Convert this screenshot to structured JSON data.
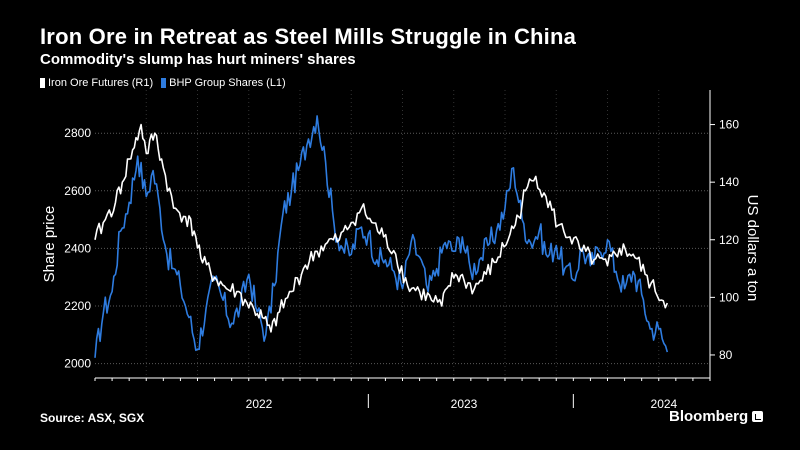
{
  "title": "Iron Ore in Retreat as Steel Mills Struggle in China",
  "subtitle": "Commodity's slump has hurt miners' shares",
  "source": "Source: ASX, SGX",
  "brand": "Bloomberg",
  "colors": {
    "iron": "#ffffff",
    "bhp": "#2e7ce0",
    "grid": "#5a5a5a"
  },
  "chart_data": {
    "type": "line",
    "xlabel": "",
    "x_range": [
      "2021-09",
      "2024-09"
    ],
    "x_categories": [
      "2022",
      "2023",
      "2024"
    ],
    "ylabel_left": "Share price",
    "ylabel_right": "US dollars a ton",
    "ylim_left": [
      1950,
      2950
    ],
    "ylim_right": [
      72,
      172
    ],
    "yticks_left": [
      2000,
      2200,
      2400,
      2600,
      2800
    ],
    "yticks_right": [
      80,
      100,
      120,
      140,
      160
    ],
    "grid": true,
    "legend_position": "top-left",
    "series": [
      {
        "name": "Iron Ore Futures (R1)",
        "axis": "right",
        "t": [
          0,
          0.6,
          1.2,
          1.6,
          2,
          2.3,
          2.7,
          3,
          3.5,
          4,
          4.6,
          5.3,
          5.8,
          6.3,
          7,
          7.7,
          8.3,
          8.9,
          9.3,
          9.8,
          10.3,
          10.8,
          11.5,
          12.2,
          13,
          13.6,
          14.3,
          15,
          15.6,
          16.2,
          16.9,
          17.6,
          18.3,
          19,
          19.7,
          20.3,
          20.7,
          21.1,
          21.6,
          22.2,
          22.9,
          23.6,
          24.3,
          24.8,
          25.2,
          25.8,
          26.4,
          27.1,
          27.8,
          28.5,
          29.2,
          30,
          30.7,
          31.5,
          32.2,
          32.8,
          33.5
        ],
        "values": [
          120,
          127,
          133,
          140,
          148,
          152,
          160,
          150,
          157,
          145,
          131,
          128,
          123,
          112,
          107,
          103,
          102,
          98,
          96,
          93,
          88,
          95,
          102,
          110,
          116,
          119,
          120,
          126,
          131,
          126,
          121,
          115,
          104,
          102,
          99,
          97,
          104,
          108,
          106,
          103,
          108,
          114,
          122,
          128,
          137,
          142,
          135,
          125,
          121,
          116,
          113,
          111,
          117,
          115,
          108,
          102,
          98
        ]
      },
      {
        "name": "BHP Group Shares (L1)",
        "axis": "left",
        "t": [
          0,
          0.5,
          1,
          1.5,
          2,
          2.5,
          3,
          3.4,
          3.8,
          4.2,
          4.6,
          5,
          5.5,
          6,
          6.5,
          7,
          7.5,
          8,
          8.5,
          9,
          9.5,
          10,
          10.5,
          11,
          11.5,
          12,
          12.5,
          13,
          13.5,
          14,
          14.5,
          15,
          15.5,
          16,
          16.5,
          17,
          17.5,
          18,
          18.5,
          19,
          19.5,
          20,
          20.5,
          21,
          21.5,
          22,
          22.5,
          23,
          23.5,
          24,
          24.5,
          25,
          25.5,
          26,
          26.5,
          27,
          27.5,
          28,
          28.5,
          29,
          29.5,
          30,
          30.5,
          31,
          31.5,
          32,
          32.5,
          33,
          33.5
        ],
        "values": [
          2020,
          2180,
          2250,
          2460,
          2560,
          2720,
          2580,
          2670,
          2540,
          2380,
          2330,
          2270,
          2160,
          2050,
          2190,
          2290,
          2220,
          2140,
          2200,
          2310,
          2180,
          2100,
          2270,
          2520,
          2600,
          2690,
          2780,
          2860,
          2700,
          2480,
          2400,
          2380,
          2470,
          2450,
          2360,
          2360,
          2320,
          2260,
          2420,
          2370,
          2250,
          2330,
          2420,
          2390,
          2440,
          2320,
          2360,
          2410,
          2460,
          2540,
          2680,
          2500,
          2420,
          2460,
          2370,
          2410,
          2330,
          2290,
          2400,
          2340,
          2390,
          2430,
          2320,
          2260,
          2320,
          2240,
          2120,
          2120,
          2040
        ]
      }
    ]
  }
}
